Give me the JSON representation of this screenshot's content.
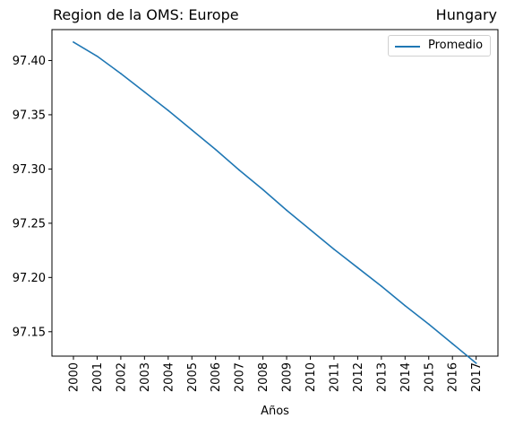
{
  "title_left": "Region de la OMS: Europe",
  "title_right": "Hungary",
  "chart_data": {
    "type": "line",
    "title": "Region de la OMS: Europe",
    "subtitle": "Hungary",
    "xlabel": "Años",
    "ylabel": "",
    "x": [
      "2000",
      "2001",
      "2002",
      "2003",
      "2004",
      "2005",
      "2006",
      "2007",
      "2008",
      "2009",
      "2010",
      "2011",
      "2012",
      "2013",
      "2014",
      "2015",
      "2016",
      "2017"
    ],
    "series": [
      {
        "name": "Promedio",
        "color": "#1f77b4",
        "values": [
          97.417,
          97.404,
          97.388,
          97.371,
          97.354,
          97.336,
          97.318,
          97.299,
          97.281,
          97.262,
          97.244,
          97.226,
          97.209,
          97.192,
          97.174,
          97.157,
          97.139,
          97.121
        ]
      }
    ],
    "ylim": [
      97.1275,
      97.4285
    ],
    "yticks": [
      "97.15",
      "97.20",
      "97.25",
      "97.30",
      "97.35",
      "97.40"
    ],
    "legend": "top-right",
    "grid": false
  }
}
